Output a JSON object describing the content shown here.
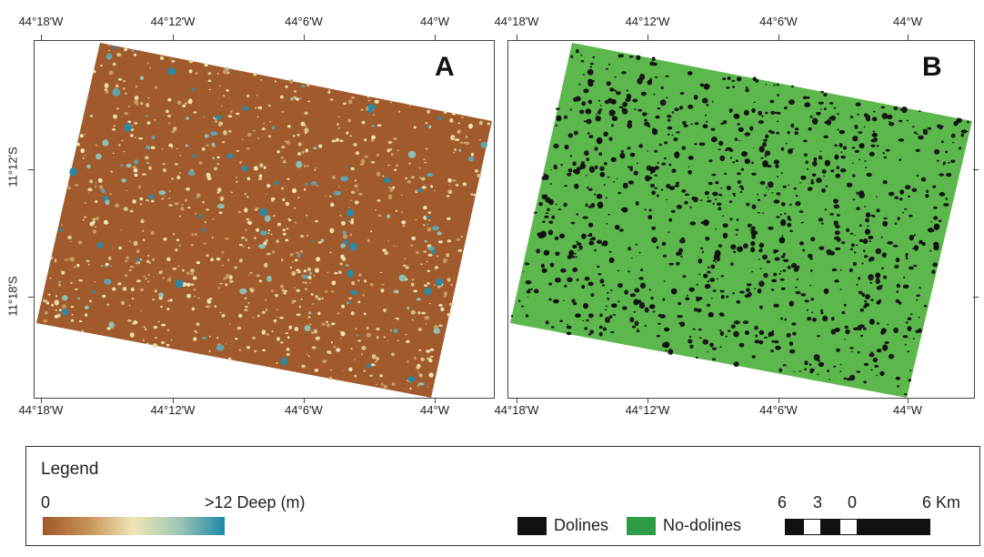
{
  "map_a": {
    "panel_label": "A",
    "top_ticks": [
      "44°18'W",
      "44°12'W",
      "44°6'W",
      "44°W"
    ],
    "bottom_ticks": [
      "44°18'W",
      "44°12'W",
      "44°6'W",
      "44°W"
    ],
    "left_ticks": [
      "11°12'S",
      "11°18'S"
    ],
    "colors": {
      "base": "#a15a2c",
      "light": "#e8dca0",
      "deep": "#2a8aa6"
    }
  },
  "map_b": {
    "panel_label": "B",
    "top_ticks": [
      "44°18'W",
      "44°12'W",
      "44°6'W",
      "44°W"
    ],
    "bottom_ticks": [
      "44°18'W",
      "44°12'W",
      "44°6'W",
      "44°W"
    ],
    "colors": {
      "base": "#5cb84c",
      "dolines": "#111111"
    }
  },
  "legend": {
    "title": "Legend",
    "depth_min": "0",
    "depth_max": ">12 Deep (m)",
    "ramp_colors": [
      "#a0582a",
      "#c8925a",
      "#efe6b4",
      "#9fc7b4",
      "#1e87a8"
    ],
    "dolines_label": "Dolines",
    "dolines_color": "#111111",
    "no_dolines_label": "No-dolines",
    "no_dolines_color": "#2e9c46",
    "scale_labels": [
      "6",
      "3",
      "0",
      "6 Km"
    ]
  }
}
